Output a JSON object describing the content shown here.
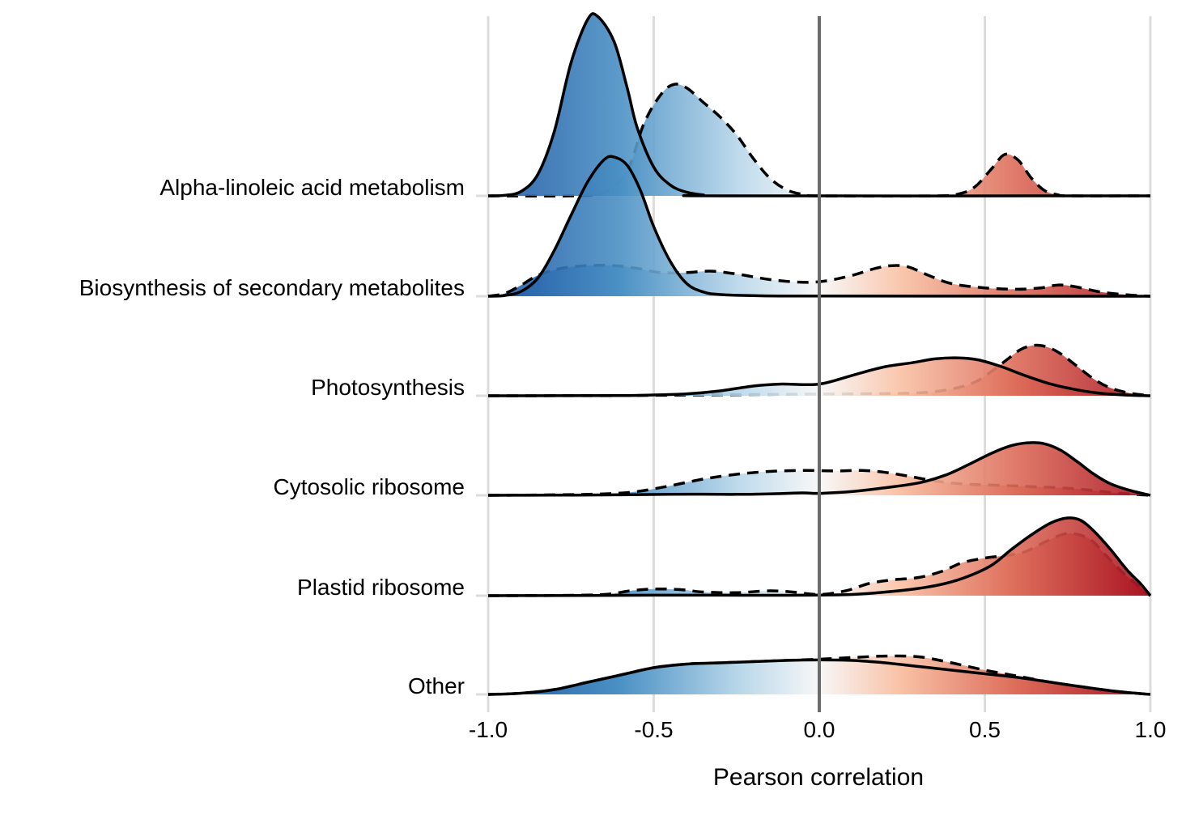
{
  "chart_data": {
    "type": "ridgeline",
    "xlabel": "Pearson correlation",
    "xlim": [
      -1.0,
      1.0
    ],
    "xticks": [
      "-1.0",
      "-0.5",
      "0.0",
      "0.5",
      "1.0"
    ],
    "fill_colors": {
      "negative": "#2166ac",
      "zero": "#f7f7f7",
      "positive": "#b2182b"
    },
    "categories": [
      {
        "name": "Alpha-linoleic acid metabolism",
        "solid": [
          [
            -1.0,
            0
          ],
          [
            -0.95,
            0.003
          ],
          [
            -0.9,
            0.025
          ],
          [
            -0.85,
            0.12
          ],
          [
            -0.8,
            0.36
          ],
          [
            -0.75,
            0.74
          ],
          [
            -0.7,
            0.98
          ],
          [
            -0.67,
            1.0
          ],
          [
            -0.62,
            0.86
          ],
          [
            -0.58,
            0.6
          ],
          [
            -0.55,
            0.38
          ],
          [
            -0.5,
            0.16
          ],
          [
            -0.45,
            0.06
          ],
          [
            -0.4,
            0.02
          ],
          [
            -0.35,
            0.005
          ],
          [
            -0.3,
            0
          ],
          [
            1.0,
            0
          ]
        ],
        "dashed": [
          [
            -1.0,
            0
          ],
          [
            -0.75,
            0
          ],
          [
            -0.65,
            0.02
          ],
          [
            -0.58,
            0.14
          ],
          [
            -0.53,
            0.4
          ],
          [
            -0.48,
            0.56
          ],
          [
            -0.44,
            0.62
          ],
          [
            -0.4,
            0.6
          ],
          [
            -0.35,
            0.52
          ],
          [
            -0.3,
            0.44
          ],
          [
            -0.25,
            0.34
          ],
          [
            -0.2,
            0.21
          ],
          [
            -0.15,
            0.1
          ],
          [
            -0.1,
            0.035
          ],
          [
            -0.05,
            0.008
          ],
          [
            0.0,
            0
          ],
          [
            0.35,
            0
          ],
          [
            0.42,
            0.01
          ],
          [
            0.47,
            0.05
          ],
          [
            0.52,
            0.15
          ],
          [
            0.56,
            0.23
          ],
          [
            0.6,
            0.2
          ],
          [
            0.64,
            0.1
          ],
          [
            0.68,
            0.03
          ],
          [
            0.72,
            0.006
          ],
          [
            0.76,
            0
          ],
          [
            1.0,
            0
          ]
        ]
      },
      {
        "name": "Biosynthesis of secondary metabolites",
        "solid": [
          [
            -1.0,
            0
          ],
          [
            -0.95,
            0.005
          ],
          [
            -0.9,
            0.035
          ],
          [
            -0.85,
            0.13
          ],
          [
            -0.8,
            0.33
          ],
          [
            -0.75,
            0.58
          ],
          [
            -0.7,
            0.82
          ],
          [
            -0.65,
            0.98
          ],
          [
            -0.62,
            1.0
          ],
          [
            -0.58,
            0.94
          ],
          [
            -0.54,
            0.76
          ],
          [
            -0.5,
            0.5
          ],
          [
            -0.45,
            0.25
          ],
          [
            -0.4,
            0.09
          ],
          [
            -0.35,
            0.03
          ],
          [
            -0.3,
            0.012
          ],
          [
            -0.2,
            0.004
          ],
          [
            0.0,
            0.001
          ],
          [
            1.0,
            0
          ]
        ],
        "dashed": [
          [
            -1.0,
            0
          ],
          [
            -0.95,
            0.02
          ],
          [
            -0.9,
            0.08
          ],
          [
            -0.85,
            0.15
          ],
          [
            -0.78,
            0.2
          ],
          [
            -0.7,
            0.22
          ],
          [
            -0.62,
            0.22
          ],
          [
            -0.55,
            0.2
          ],
          [
            -0.48,
            0.17
          ],
          [
            -0.4,
            0.17
          ],
          [
            -0.33,
            0.18
          ],
          [
            -0.25,
            0.16
          ],
          [
            -0.15,
            0.12
          ],
          [
            -0.05,
            0.1
          ],
          [
            0.02,
            0.11
          ],
          [
            0.1,
            0.15
          ],
          [
            0.17,
            0.2
          ],
          [
            0.22,
            0.22
          ],
          [
            0.27,
            0.21
          ],
          [
            0.33,
            0.15
          ],
          [
            0.4,
            0.09
          ],
          [
            0.5,
            0.06
          ],
          [
            0.6,
            0.05
          ],
          [
            0.67,
            0.06
          ],
          [
            0.72,
            0.08
          ],
          [
            0.77,
            0.07
          ],
          [
            0.85,
            0.03
          ],
          [
            0.93,
            0.01
          ],
          [
            1.0,
            0
          ]
        ]
      },
      {
        "name": "Photosynthesis",
        "solid": [
          [
            -1.0,
            0
          ],
          [
            -0.6,
            0.002
          ],
          [
            -0.5,
            0.008
          ],
          [
            -0.4,
            0.02
          ],
          [
            -0.3,
            0.05
          ],
          [
            -0.2,
            0.1
          ],
          [
            -0.12,
            0.12
          ],
          [
            -0.05,
            0.115
          ],
          [
            0.0,
            0.12
          ],
          [
            0.05,
            0.16
          ],
          [
            0.12,
            0.23
          ],
          [
            0.2,
            0.3
          ],
          [
            0.28,
            0.34
          ],
          [
            0.35,
            0.38
          ],
          [
            0.42,
            0.39
          ],
          [
            0.48,
            0.37
          ],
          [
            0.55,
            0.3
          ],
          [
            0.62,
            0.21
          ],
          [
            0.7,
            0.12
          ],
          [
            0.78,
            0.06
          ],
          [
            0.85,
            0.025
          ],
          [
            0.92,
            0.008
          ],
          [
            1.0,
            0
          ]
        ],
        "dashed": [
          [
            -1.0,
            0
          ],
          [
            -0.6,
            0.002
          ],
          [
            -0.45,
            0.006
          ],
          [
            -0.3,
            0.01
          ],
          [
            -0.1,
            0.015
          ],
          [
            0.1,
            0.02
          ],
          [
            0.3,
            0.03
          ],
          [
            0.4,
            0.07
          ],
          [
            0.47,
            0.14
          ],
          [
            0.52,
            0.25
          ],
          [
            0.57,
            0.38
          ],
          [
            0.61,
            0.48
          ],
          [
            0.65,
            0.52
          ],
          [
            0.69,
            0.5
          ],
          [
            0.73,
            0.43
          ],
          [
            0.78,
            0.3
          ],
          [
            0.83,
            0.17
          ],
          [
            0.88,
            0.08
          ],
          [
            0.94,
            0.025
          ],
          [
            1.0,
            0
          ]
        ]
      },
      {
        "name": "Cytosolic ribosome",
        "solid": [
          [
            -1.0,
            0
          ],
          [
            -0.8,
            0.002
          ],
          [
            -0.6,
            0.005
          ],
          [
            -0.45,
            0.01
          ],
          [
            -0.35,
            0.012
          ],
          [
            -0.25,
            0.01
          ],
          [
            -0.15,
            0.015
          ],
          [
            -0.05,
            0.025
          ],
          [
            0.0,
            0.02
          ],
          [
            0.1,
            0.04
          ],
          [
            0.2,
            0.08
          ],
          [
            0.3,
            0.13
          ],
          [
            0.38,
            0.21
          ],
          [
            0.45,
            0.32
          ],
          [
            0.52,
            0.44
          ],
          [
            0.58,
            0.52
          ],
          [
            0.63,
            0.55
          ],
          [
            0.68,
            0.54
          ],
          [
            0.73,
            0.47
          ],
          [
            0.78,
            0.35
          ],
          [
            0.83,
            0.22
          ],
          [
            0.88,
            0.12
          ],
          [
            0.94,
            0.05
          ],
          [
            1.0,
            0
          ]
        ],
        "dashed": [
          [
            -1.0,
            0
          ],
          [
            -0.8,
            0.005
          ],
          [
            -0.65,
            0.015
          ],
          [
            -0.55,
            0.04
          ],
          [
            -0.45,
            0.1
          ],
          [
            -0.35,
            0.17
          ],
          [
            -0.25,
            0.22
          ],
          [
            -0.15,
            0.25
          ],
          [
            -0.05,
            0.26
          ],
          [
            0.05,
            0.255
          ],
          [
            0.13,
            0.26
          ],
          [
            0.2,
            0.24
          ],
          [
            0.27,
            0.2
          ],
          [
            0.35,
            0.15
          ],
          [
            0.43,
            0.12
          ],
          [
            0.5,
            0.11
          ],
          [
            0.58,
            0.1
          ],
          [
            0.65,
            0.09
          ],
          [
            0.72,
            0.08
          ],
          [
            0.8,
            0.06
          ],
          [
            0.88,
            0.03
          ],
          [
            0.95,
            0.01
          ],
          [
            1.0,
            0
          ]
        ]
      },
      {
        "name": "Plastid ribosome",
        "solid": [
          [
            -1.0,
            0
          ],
          [
            -0.7,
            0.002
          ],
          [
            -0.5,
            0.004
          ],
          [
            -0.3,
            0.004
          ],
          [
            -0.1,
            0.003
          ],
          [
            0.0,
            0.005
          ],
          [
            0.1,
            0.01
          ],
          [
            0.2,
            0.03
          ],
          [
            0.3,
            0.06
          ],
          [
            0.38,
            0.1
          ],
          [
            0.45,
            0.16
          ],
          [
            0.52,
            0.25
          ],
          [
            0.58,
            0.38
          ],
          [
            0.64,
            0.5
          ],
          [
            0.7,
            0.6
          ],
          [
            0.75,
            0.64
          ],
          [
            0.79,
            0.62
          ],
          [
            0.83,
            0.53
          ],
          [
            0.88,
            0.38
          ],
          [
            0.93,
            0.21
          ],
          [
            0.97,
            0.1
          ],
          [
            1.0,
            0
          ]
        ],
        "dashed": [
          [
            -1.0,
            0
          ],
          [
            -0.8,
            0.002
          ],
          [
            -0.65,
            0.01
          ],
          [
            -0.57,
            0.04
          ],
          [
            -0.5,
            0.055
          ],
          [
            -0.42,
            0.05
          ],
          [
            -0.35,
            0.03
          ],
          [
            -0.25,
            0.025
          ],
          [
            -0.15,
            0.04
          ],
          [
            -0.08,
            0.03
          ],
          [
            0.0,
            0.01
          ],
          [
            0.08,
            0.04
          ],
          [
            0.15,
            0.1
          ],
          [
            0.22,
            0.13
          ],
          [
            0.3,
            0.15
          ],
          [
            0.37,
            0.2
          ],
          [
            0.43,
            0.27
          ],
          [
            0.5,
            0.31
          ],
          [
            0.56,
            0.33
          ],
          [
            0.62,
            0.36
          ],
          [
            0.68,
            0.44
          ],
          [
            0.73,
            0.5
          ],
          [
            0.77,
            0.51
          ],
          [
            0.82,
            0.46
          ],
          [
            0.87,
            0.32
          ],
          [
            0.92,
            0.18
          ],
          [
            0.96,
            0.09
          ],
          [
            1.0,
            0
          ]
        ]
      },
      {
        "name": "Other",
        "solid": [
          [
            -1.0,
            0
          ],
          [
            -0.9,
            0.005
          ],
          [
            -0.8,
            0.02
          ],
          [
            -0.7,
            0.05
          ],
          [
            -0.6,
            0.08
          ],
          [
            -0.5,
            0.11
          ],
          [
            -0.4,
            0.125
          ],
          [
            -0.3,
            0.13
          ],
          [
            -0.2,
            0.135
          ],
          [
            -0.1,
            0.14
          ],
          [
            0.0,
            0.142
          ],
          [
            0.1,
            0.14
          ],
          [
            0.2,
            0.13
          ],
          [
            0.3,
            0.115
          ],
          [
            0.4,
            0.1
          ],
          [
            0.5,
            0.085
          ],
          [
            0.6,
            0.07
          ],
          [
            0.7,
            0.05
          ],
          [
            0.8,
            0.03
          ],
          [
            0.9,
            0.012
          ],
          [
            1.0,
            0
          ]
        ],
        "dashed": [
          [
            -1.0,
            0
          ],
          [
            -0.9,
            0.005
          ],
          [
            -0.8,
            0.02
          ],
          [
            -0.7,
            0.05
          ],
          [
            -0.6,
            0.08
          ],
          [
            -0.5,
            0.11
          ],
          [
            -0.4,
            0.125
          ],
          [
            -0.3,
            0.13
          ],
          [
            -0.2,
            0.135
          ],
          [
            -0.1,
            0.14
          ],
          [
            0.0,
            0.145
          ],
          [
            0.1,
            0.152
          ],
          [
            0.2,
            0.158
          ],
          [
            0.3,
            0.155
          ],
          [
            0.4,
            0.13
          ],
          [
            0.5,
            0.1
          ],
          [
            0.6,
            0.075
          ],
          [
            0.7,
            0.05
          ],
          [
            0.8,
            0.03
          ],
          [
            0.9,
            0.012
          ],
          [
            1.0,
            0
          ]
        ]
      }
    ]
  }
}
